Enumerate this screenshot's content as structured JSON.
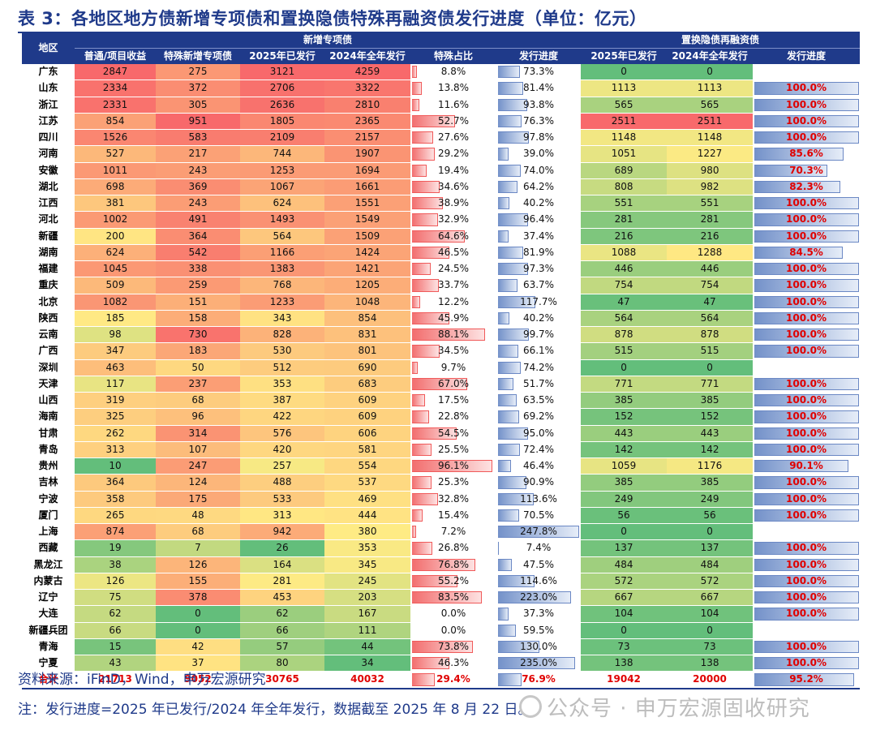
{
  "title": "表 3：各地区地方债新增专项债和置换隐债特殊再融资债发行进度（单位：亿元）",
  "header": {
    "region": "地区",
    "group_new": "新增专项债",
    "group_replace": "置换隐债再融资债",
    "cols": [
      "普通/项目收益",
      "特殊新增专项债",
      "2025年已发行",
      "2024年全年发行",
      "特殊占比",
      "发行进度",
      "2025年已发行",
      "2024年全年发行",
      "发行进度"
    ]
  },
  "rows": [
    {
      "r": "广东",
      "a": "2847",
      "b": "275",
      "c": "3121",
      "d": "4259",
      "e": "8.8%",
      "f": "73.3%",
      "g": "0",
      "h": "0",
      "i": ""
    },
    {
      "r": "山东",
      "a": "2334",
      "b": "372",
      "c": "2706",
      "d": "3322",
      "e": "13.8%",
      "f": "81.4%",
      "g": "1113",
      "h": "1113",
      "i": "100.0%"
    },
    {
      "r": "浙江",
      "a": "2331",
      "b": "305",
      "c": "2636",
      "d": "2810",
      "e": "11.6%",
      "f": "93.8%",
      "g": "565",
      "h": "565",
      "i": "100.0%"
    },
    {
      "r": "江苏",
      "a": "854",
      "b": "951",
      "c": "1805",
      "d": "2365",
      "e": "52.7%",
      "f": "76.3%",
      "g": "2511",
      "h": "2511",
      "i": "100.0%"
    },
    {
      "r": "四川",
      "a": "1526",
      "b": "583",
      "c": "2109",
      "d": "2157",
      "e": "27.6%",
      "f": "97.8%",
      "g": "1148",
      "h": "1148",
      "i": "100.0%"
    },
    {
      "r": "河南",
      "a": "527",
      "b": "217",
      "c": "744",
      "d": "1907",
      "e": "29.2%",
      "f": "39.0%",
      "g": "1051",
      "h": "1227",
      "i": "85.6%"
    },
    {
      "r": "安徽",
      "a": "1011",
      "b": "243",
      "c": "1253",
      "d": "1694",
      "e": "19.4%",
      "f": "74.0%",
      "g": "689",
      "h": "980",
      "i": "70.3%"
    },
    {
      "r": "湖北",
      "a": "698",
      "b": "369",
      "c": "1067",
      "d": "1661",
      "e": "34.6%",
      "f": "64.2%",
      "g": "808",
      "h": "982",
      "i": "82.3%"
    },
    {
      "r": "江西",
      "a": "381",
      "b": "243",
      "c": "624",
      "d": "1551",
      "e": "38.9%",
      "f": "40.2%",
      "g": "551",
      "h": "551",
      "i": "100.0%"
    },
    {
      "r": "河北",
      "a": "1002",
      "b": "491",
      "c": "1493",
      "d": "1549",
      "e": "32.9%",
      "f": "96.4%",
      "g": "281",
      "h": "281",
      "i": "100.0%"
    },
    {
      "r": "新疆",
      "a": "200",
      "b": "364",
      "c": "564",
      "d": "1509",
      "e": "64.6%",
      "f": "37.4%",
      "g": "216",
      "h": "216",
      "i": "100.0%"
    },
    {
      "r": "湖南",
      "a": "624",
      "b": "542",
      "c": "1166",
      "d": "1424",
      "e": "46.5%",
      "f": "81.9%",
      "g": "1088",
      "h": "1288",
      "i": "84.5%"
    },
    {
      "r": "福建",
      "a": "1045",
      "b": "338",
      "c": "1383",
      "d": "1421",
      "e": "24.5%",
      "f": "97.3%",
      "g": "446",
      "h": "446",
      "i": "100.0%"
    },
    {
      "r": "重庆",
      "a": "509",
      "b": "259",
      "c": "768",
      "d": "1205",
      "e": "33.7%",
      "f": "63.7%",
      "g": "754",
      "h": "754",
      "i": "100.0%"
    },
    {
      "r": "北京",
      "a": "1082",
      "b": "151",
      "c": "1233",
      "d": "1048",
      "e": "12.2%",
      "f": "117.7%",
      "g": "47",
      "h": "47",
      "i": "100.0%"
    },
    {
      "r": "陕西",
      "a": "185",
      "b": "158",
      "c": "343",
      "d": "854",
      "e": "45.9%",
      "f": "40.2%",
      "g": "564",
      "h": "564",
      "i": "100.0%"
    },
    {
      "r": "云南",
      "a": "98",
      "b": "730",
      "c": "828",
      "d": "831",
      "e": "88.1%",
      "f": "99.7%",
      "g": "878",
      "h": "878",
      "i": "100.0%"
    },
    {
      "r": "广西",
      "a": "347",
      "b": "183",
      "c": "530",
      "d": "801",
      "e": "34.5%",
      "f": "66.1%",
      "g": "515",
      "h": "515",
      "i": "100.0%"
    },
    {
      "r": "深圳",
      "a": "463",
      "b": "50",
      "c": "512",
      "d": "690",
      "e": "9.7%",
      "f": "74.2%",
      "g": "0",
      "h": "0",
      "i": ""
    },
    {
      "r": "天津",
      "a": "117",
      "b": "237",
      "c": "353",
      "d": "683",
      "e": "67.0%",
      "f": "51.7%",
      "g": "771",
      "h": "771",
      "i": "100.0%"
    },
    {
      "r": "山西",
      "a": "319",
      "b": "68",
      "c": "387",
      "d": "609",
      "e": "17.5%",
      "f": "63.5%",
      "g": "385",
      "h": "385",
      "i": "100.0%"
    },
    {
      "r": "海南",
      "a": "325",
      "b": "96",
      "c": "422",
      "d": "609",
      "e": "22.8%",
      "f": "69.2%",
      "g": "152",
      "h": "152",
      "i": "100.0%"
    },
    {
      "r": "甘肃",
      "a": "262",
      "b": "314",
      "c": "576",
      "d": "606",
      "e": "54.5%",
      "f": "95.0%",
      "g": "443",
      "h": "443",
      "i": "100.0%"
    },
    {
      "r": "青岛",
      "a": "313",
      "b": "107",
      "c": "420",
      "d": "581",
      "e": "25.5%",
      "f": "72.4%",
      "g": "142",
      "h": "142",
      "i": "100.0%"
    },
    {
      "r": "贵州",
      "a": "10",
      "b": "247",
      "c": "257",
      "d": "554",
      "e": "96.1%",
      "f": "46.4%",
      "g": "1059",
      "h": "1176",
      "i": "90.1%"
    },
    {
      "r": "吉林",
      "a": "364",
      "b": "124",
      "c": "488",
      "d": "537",
      "e": "25.3%",
      "f": "90.9%",
      "g": "385",
      "h": "385",
      "i": "100.0%"
    },
    {
      "r": "宁波",
      "a": "358",
      "b": "175",
      "c": "533",
      "d": "469",
      "e": "32.8%",
      "f": "113.6%",
      "g": "249",
      "h": "249",
      "i": "100.0%"
    },
    {
      "r": "厦门",
      "a": "265",
      "b": "48",
      "c": "313",
      "d": "444",
      "e": "15.4%",
      "f": "70.5%",
      "g": "56",
      "h": "56",
      "i": "100.0%"
    },
    {
      "r": "上海",
      "a": "874",
      "b": "68",
      "c": "942",
      "d": "380",
      "e": "7.2%",
      "f": "247.8%",
      "g": "0",
      "h": "0",
      "i": ""
    },
    {
      "r": "西藏",
      "a": "19",
      "b": "7",
      "c": "26",
      "d": "353",
      "e": "26.8%",
      "f": "7.4%",
      "g": "137",
      "h": "137",
      "i": "100.0%"
    },
    {
      "r": "黑龙江",
      "a": "38",
      "b": "126",
      "c": "164",
      "d": "345",
      "e": "76.8%",
      "f": "47.5%",
      "g": "484",
      "h": "484",
      "i": "100.0%"
    },
    {
      "r": "内蒙古",
      "a": "126",
      "b": "155",
      "c": "281",
      "d": "245",
      "e": "55.2%",
      "f": "114.6%",
      "g": "572",
      "h": "572",
      "i": "100.0%"
    },
    {
      "r": "辽宁",
      "a": "75",
      "b": "378",
      "c": "453",
      "d": "203",
      "e": "83.5%",
      "f": "223.0%",
      "g": "667",
      "h": "667",
      "i": "100.0%"
    },
    {
      "r": "大连",
      "a": "62",
      "b": "0",
      "c": "62",
      "d": "167",
      "e": "0.0%",
      "f": "37.3%",
      "g": "104",
      "h": "104",
      "i": "100.0%"
    },
    {
      "r": "新疆兵团",
      "a": "66",
      "b": "0",
      "c": "66",
      "d": "111",
      "e": "0.0%",
      "f": "59.5%",
      "g": "0",
      "h": "0",
      "i": ""
    },
    {
      "r": "青海",
      "a": "15",
      "b": "42",
      "c": "57",
      "d": "44",
      "e": "73.8%",
      "f": "130.0%",
      "g": "73",
      "h": "73",
      "i": "100.0%"
    },
    {
      "r": "宁夏",
      "a": "43",
      "b": "37",
      "c": "80",
      "d": "34",
      "e": "46.3%",
      "f": "235.0%",
      "g": "138",
      "h": "138",
      "i": "100.0%"
    }
  ],
  "total": {
    "r": "合计",
    "a": "21713",
    "b": "9052",
    "c": "30765",
    "d": "40032",
    "e": "29.4%",
    "f": "76.9%",
    "g": "19042",
    "h": "20000",
    "i": "95.2%"
  },
  "source": "资料来源：iFinD，Wind，申万宏源研究",
  "note": "注：发行进度=2025 年已发行/2024 年全年发行，数据截至 2025 年 8 月 22 日。",
  "watermark": "公众号 · 申万宏源固收研究",
  "colors": {
    "header_bg": "#1f3a8a",
    "red_text": "#e00000",
    "heat_low": "#63be7b",
    "heat_mid": "#ffeb84",
    "heat_high": "#f8696b",
    "bar_red": "#f26d6d",
    "bar_blue": "#7391c9"
  }
}
